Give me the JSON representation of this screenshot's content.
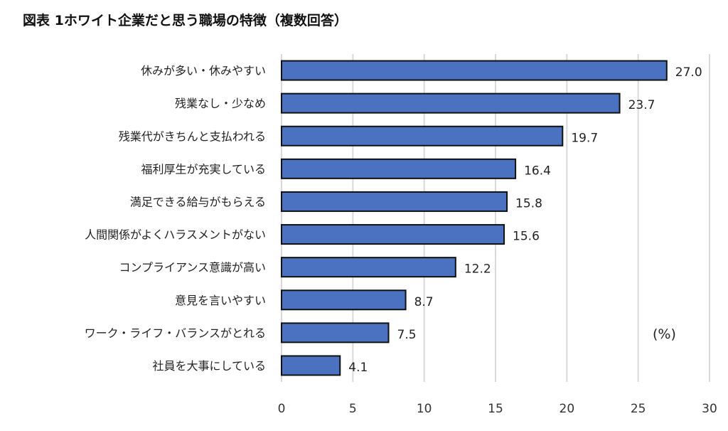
{
  "chart_data": {
    "type": "bar",
    "orientation": "horizontal",
    "title": "図表 1ホワイト企業だと思う職場の特徴（複数回答）",
    "unit_label": "(%)",
    "categories": [
      "休みが多い・休みやすい",
      "残業なし・少なめ",
      "残業代がきちんと支払われる",
      "福利厚生が充実している",
      "満足できる給与がもらえる",
      "人間関係がよくハラスメントがない",
      "コンプライアンス意識が高い",
      "意見を言いやすい",
      "ワーク・ライフ・バランスがとれる",
      "社員を大事にしている"
    ],
    "values": [
      27.0,
      23.7,
      19.7,
      16.4,
      15.8,
      15.6,
      12.2,
      8.7,
      7.5,
      4.1
    ],
    "value_labels": [
      "27.0",
      "23.7",
      "19.7",
      "16.4",
      "15.8",
      "15.6",
      "12.2",
      "8.7",
      "7.5",
      "4.1"
    ],
    "xlim": [
      0,
      30
    ],
    "xticks": [
      "0",
      "5",
      "10",
      "15",
      "20",
      "25",
      "30"
    ],
    "grid": true,
    "legend": "none",
    "bar_color": "#4a72c0",
    "bar_border": "#111111",
    "grid_color": "#d9d9d9"
  }
}
